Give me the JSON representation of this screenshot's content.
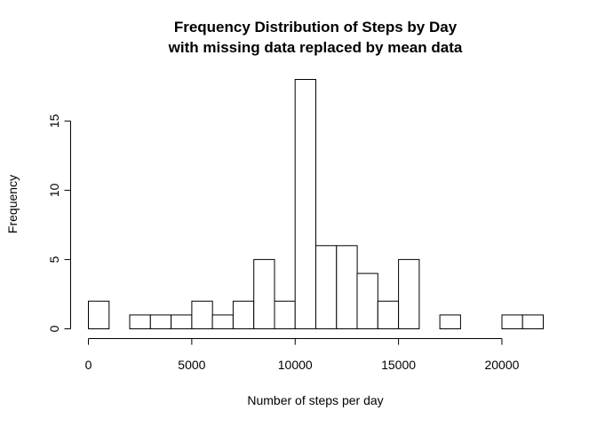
{
  "chart_data": {
    "type": "bar",
    "title_line1": "Frequency Distribution of Steps by Day",
    "title_line2": "with missing data replaced by mean data",
    "xlabel": "Number of steps per day",
    "ylabel": "Frequency",
    "bin_edges": [
      0,
      1000,
      2000,
      3000,
      4000,
      5000,
      6000,
      7000,
      8000,
      9000,
      10000,
      11000,
      12000,
      13000,
      14000,
      15000,
      16000,
      17000,
      18000,
      19000,
      20000,
      21000,
      22000
    ],
    "values": [
      2,
      0,
      1,
      1,
      1,
      2,
      1,
      2,
      5,
      2,
      18,
      6,
      6,
      4,
      2,
      5,
      0,
      1,
      0,
      0,
      1,
      1
    ],
    "xlim": [
      0,
      22000
    ],
    "ylim": [
      0,
      18
    ],
    "xticks": [
      0,
      5000,
      10000,
      15000,
      20000
    ],
    "xtick_labels": [
      "0",
      "5000",
      "10000",
      "15000",
      "20000"
    ],
    "yticks": [
      0,
      5,
      10,
      15
    ],
    "ytick_labels": [
      "0",
      "5",
      "10",
      "15"
    ],
    "grid": false,
    "bar_fill": "#ffffff",
    "bar_stroke": "#000000"
  }
}
